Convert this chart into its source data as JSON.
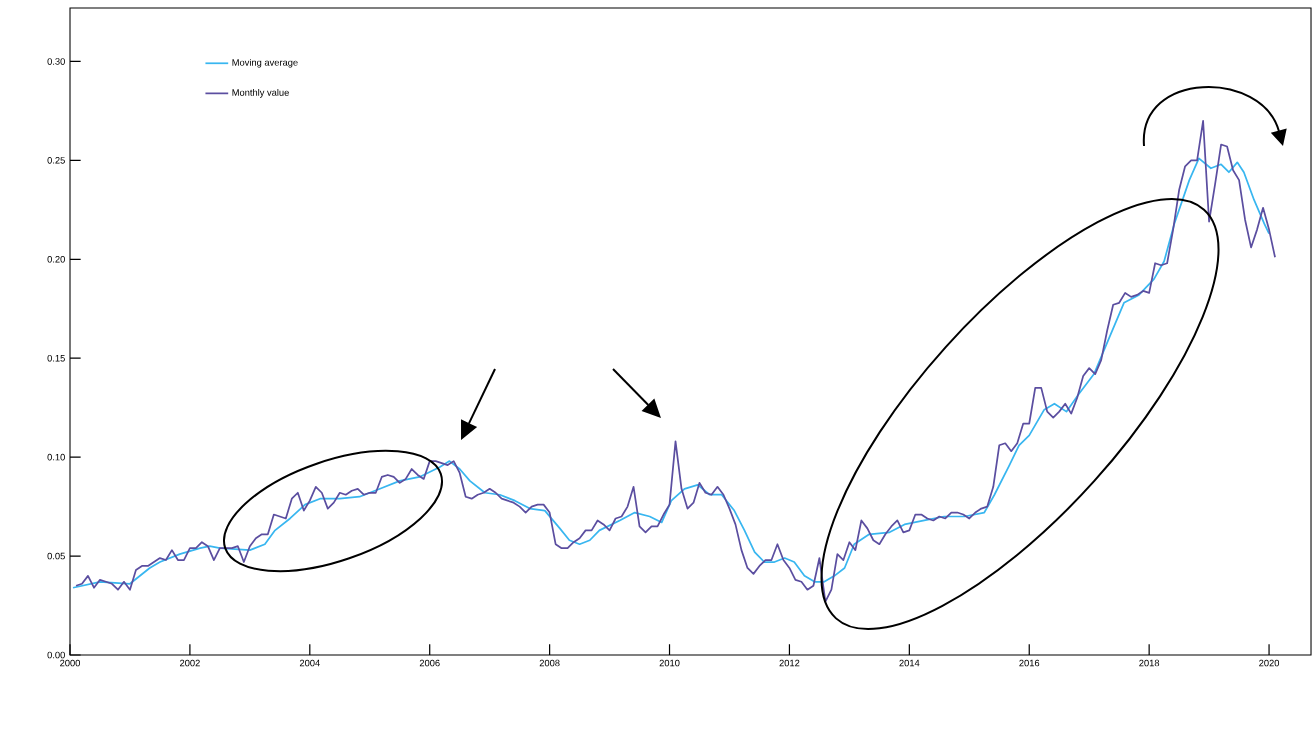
{
  "chart_data": {
    "type": "line",
    "xlim": [
      2000,
      2020.7
    ],
    "ylim": [
      0,
      0.327
    ],
    "xticks": [
      2000,
      2002,
      2004,
      2006,
      2008,
      2010,
      2012,
      2014,
      2016,
      2018,
      2020
    ],
    "yticks": [
      {
        "value": 0,
        "label": "0.00"
      },
      {
        "value": 0.05,
        "label": "0.05"
      },
      {
        "value": 0.1,
        "label": "0.10"
      },
      {
        "value": 0.15,
        "label": "0.15"
      },
      {
        "value": 0.2,
        "label": "0.20"
      },
      {
        "value": 0.25,
        "label": "0.25"
      },
      {
        "value": 0.3,
        "label": "0.30"
      }
    ],
    "legend": "top left",
    "line_style": "solid",
    "series": [
      {
        "name": "Moving average",
        "color": "#38b6f0",
        "x": [
          2000.05,
          2000.5,
          2001.0,
          2001.33,
          2001.5,
          2001.83,
          2002.17,
          2002.33,
          2002.5,
          2003.0,
          2003.25,
          2003.42,
          2003.67,
          2003.92,
          2004.17,
          2004.5,
          2004.83,
          2005.17,
          2005.5,
          2005.83,
          2006.17,
          2006.33,
          2006.5,
          2006.67,
          2006.92,
          2007.17,
          2007.42,
          2007.67,
          2007.92,
          2008.17,
          2008.33,
          2008.5,
          2008.67,
          2008.83,
          2009.17,
          2009.42,
          2009.67,
          2009.87,
          2010.03,
          2010.25,
          2010.47,
          2010.67,
          2010.87,
          2011.08,
          2011.25,
          2011.42,
          2011.58,
          2011.75,
          2011.92,
          2012.08,
          2012.25,
          2012.42,
          2012.58,
          2012.75,
          2012.92,
          2013.08,
          2013.33,
          2013.67,
          2013.92,
          2014.25,
          2014.58,
          2014.92,
          2015.25,
          2015.42,
          2015.67,
          2015.83,
          2016.0,
          2016.25,
          2016.42,
          2016.62,
          2016.83,
          2017.08,
          2017.33,
          2017.58,
          2017.83,
          2018.08,
          2018.25,
          2018.42,
          2018.67,
          2018.83,
          2019.03,
          2019.2,
          2019.33,
          2019.47,
          2019.58,
          2019.75,
          2019.92,
          2020.0
        ],
        "values": [
          0.034,
          0.037,
          0.036,
          0.044,
          0.047,
          0.051,
          0.054,
          0.055,
          0.054,
          0.053,
          0.056,
          0.063,
          0.069,
          0.076,
          0.079,
          0.079,
          0.08,
          0.084,
          0.088,
          0.09,
          0.095,
          0.098,
          0.094,
          0.088,
          0.082,
          0.081,
          0.078,
          0.074,
          0.073,
          0.064,
          0.058,
          0.056,
          0.058,
          0.063,
          0.068,
          0.072,
          0.07,
          0.067,
          0.078,
          0.084,
          0.086,
          0.081,
          0.081,
          0.073,
          0.063,
          0.052,
          0.047,
          0.047,
          0.049,
          0.047,
          0.04,
          0.037,
          0.037,
          0.04,
          0.044,
          0.056,
          0.061,
          0.062,
          0.066,
          0.068,
          0.07,
          0.07,
          0.072,
          0.081,
          0.096,
          0.106,
          0.111,
          0.124,
          0.127,
          0.123,
          0.132,
          0.142,
          0.16,
          0.178,
          0.182,
          0.19,
          0.199,
          0.218,
          0.24,
          0.251,
          0.246,
          0.248,
          0.244,
          0.249,
          0.244,
          0.23,
          0.218,
          0.213
        ]
      },
      {
        "name": "Monthly value",
        "color": "#5b4ea0",
        "x": [
          2000.1,
          2000.2,
          2000.3,
          2000.4,
          2000.5,
          2000.6,
          2000.7,
          2000.8,
          2000.9,
          2001.0,
          2001.1,
          2001.2,
          2001.3,
          2001.4,
          2001.5,
          2001.6,
          2001.7,
          2001.8,
          2001.9,
          2002.0,
          2002.1,
          2002.2,
          2002.3,
          2002.4,
          2002.5,
          2002.6,
          2002.7,
          2002.8,
          2002.9,
          2003.0,
          2003.1,
          2003.2,
          2003.3,
          2003.4,
          2003.5,
          2003.6,
          2003.7,
          2003.8,
          2003.9,
          2004.0,
          2004.1,
          2004.2,
          2004.3,
          2004.4,
          2004.5,
          2004.6,
          2004.7,
          2004.8,
          2004.9,
          2005.0,
          2005.1,
          2005.2,
          2005.3,
          2005.4,
          2005.5,
          2005.6,
          2005.7,
          2005.8,
          2005.9,
          2006.0,
          2006.1,
          2006.2,
          2006.3,
          2006.4,
          2006.5,
          2006.6,
          2006.7,
          2006.8,
          2006.9,
          2007.0,
          2007.1,
          2007.2,
          2007.3,
          2007.4,
          2007.5,
          2007.6,
          2007.7,
          2007.8,
          2007.9,
          2008.0,
          2008.1,
          2008.2,
          2008.3,
          2008.4,
          2008.5,
          2008.6,
          2008.7,
          2008.8,
          2008.9,
          2009.0,
          2009.1,
          2009.2,
          2009.3,
          2009.4,
          2009.5,
          2009.6,
          2009.7,
          2009.8,
          2009.9,
          2010.0,
          2010.1,
          2010.2,
          2010.3,
          2010.4,
          2010.5,
          2010.6,
          2010.7,
          2010.8,
          2010.9,
          2011.0,
          2011.1,
          2011.2,
          2011.3,
          2011.4,
          2011.5,
          2011.6,
          2011.7,
          2011.8,
          2011.9,
          2012.0,
          2012.1,
          2012.2,
          2012.3,
          2012.4,
          2012.5,
          2012.6,
          2012.7,
          2012.8,
          2012.9,
          2013.0,
          2013.1,
          2013.2,
          2013.3,
          2013.4,
          2013.5,
          2013.6,
          2013.7,
          2013.8,
          2013.9,
          2014.0,
          2014.1,
          2014.2,
          2014.3,
          2014.4,
          2014.5,
          2014.6,
          2014.7,
          2014.8,
          2014.9,
          2015.0,
          2015.1,
          2015.2,
          2015.3,
          2015.4,
          2015.5,
          2015.6,
          2015.7,
          2015.8,
          2015.9,
          2016.0,
          2016.1,
          2016.2,
          2016.3,
          2016.4,
          2016.5,
          2016.6,
          2016.7,
          2016.8,
          2016.9,
          2017.0,
          2017.1,
          2017.2,
          2017.3,
          2017.4,
          2017.5,
          2017.6,
          2017.7,
          2017.8,
          2017.9,
          2018.0,
          2018.1,
          2018.2,
          2018.3,
          2018.4,
          2018.5,
          2018.6,
          2018.7,
          2018.8,
          2018.9,
          2019.0,
          2019.1,
          2019.2,
          2019.3,
          2019.4,
          2019.5,
          2019.6,
          2019.7,
          2019.8,
          2019.9,
          2020.0,
          2020.1
        ],
        "values": [
          0.035,
          0.036,
          0.04,
          0.034,
          0.038,
          0.037,
          0.036,
          0.033,
          0.037,
          0.033,
          0.043,
          0.045,
          0.045,
          0.047,
          0.049,
          0.048,
          0.053,
          0.048,
          0.048,
          0.054,
          0.054,
          0.057,
          0.055,
          0.048,
          0.054,
          0.054,
          0.054,
          0.055,
          0.047,
          0.055,
          0.059,
          0.061,
          0.061,
          0.071,
          0.07,
          0.069,
          0.079,
          0.082,
          0.073,
          0.078,
          0.085,
          0.082,
          0.074,
          0.077,
          0.082,
          0.081,
          0.083,
          0.084,
          0.081,
          0.082,
          0.082,
          0.09,
          0.091,
          0.09,
          0.087,
          0.089,
          0.094,
          0.091,
          0.089,
          0.098,
          0.098,
          0.097,
          0.096,
          0.098,
          0.092,
          0.08,
          0.079,
          0.081,
          0.082,
          0.084,
          0.082,
          0.079,
          0.078,
          0.077,
          0.075,
          0.072,
          0.075,
          0.076,
          0.076,
          0.072,
          0.056,
          0.054,
          0.054,
          0.057,
          0.059,
          0.063,
          0.063,
          0.068,
          0.066,
          0.063,
          0.069,
          0.07,
          0.075,
          0.085,
          0.065,
          0.062,
          0.065,
          0.065,
          0.071,
          0.076,
          0.108,
          0.084,
          0.074,
          0.077,
          0.087,
          0.082,
          0.081,
          0.085,
          0.081,
          0.074,
          0.066,
          0.053,
          0.044,
          0.041,
          0.045,
          0.048,
          0.048,
          0.056,
          0.048,
          0.044,
          0.038,
          0.037,
          0.033,
          0.035,
          0.049,
          0.027,
          0.033,
          0.051,
          0.048,
          0.057,
          0.053,
          0.068,
          0.064,
          0.058,
          0.056,
          0.061,
          0.065,
          0.068,
          0.062,
          0.063,
          0.071,
          0.071,
          0.069,
          0.068,
          0.07,
          0.069,
          0.072,
          0.072,
          0.071,
          0.069,
          0.072,
          0.074,
          0.075,
          0.085,
          0.106,
          0.107,
          0.103,
          0.107,
          0.117,
          0.117,
          0.135,
          0.135,
          0.123,
          0.12,
          0.123,
          0.127,
          0.122,
          0.13,
          0.141,
          0.145,
          0.142,
          0.149,
          0.164,
          0.177,
          0.178,
          0.183,
          0.181,
          0.182,
          0.184,
          0.183,
          0.198,
          0.197,
          0.198,
          0.215,
          0.235,
          0.247,
          0.25,
          0.25,
          0.27,
          0.219,
          0.238,
          0.258,
          0.257,
          0.245,
          0.24,
          0.22,
          0.206,
          0.215,
          0.226,
          0.215,
          0.201
        ]
      }
    ]
  }
}
